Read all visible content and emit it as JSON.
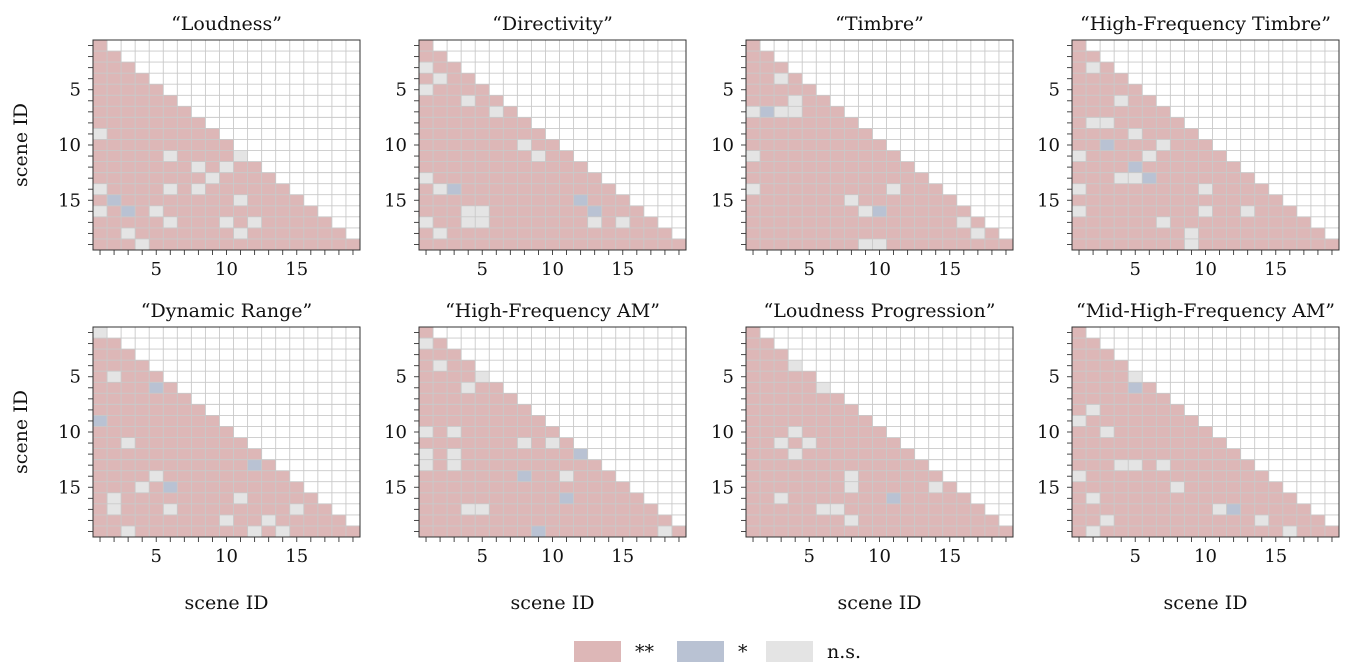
{
  "n_scenes": 19,
  "axis": {
    "xlabel": "scene ID",
    "ylabel": "scene ID",
    "ticks": [
      5,
      10,
      15
    ]
  },
  "legend": [
    {
      "label": "**",
      "color": "#ddb7b7"
    },
    {
      "label": "*",
      "color": "#b9c2d3"
    },
    {
      "label": "n.s.",
      "color": "#e4e4e4"
    }
  ],
  "colors": {
    "grid": "#c9c9c9",
    "frame": "#333333",
    "text": "#111111"
  },
  "chart_data": [
    {
      "type": "heatmap",
      "title": "“Loudness”",
      "sig_one": [
        [
          15,
          2
        ],
        [
          16,
          3
        ]
      ],
      "ns": [
        [
          9,
          1
        ],
        [
          14,
          1
        ],
        [
          11,
          6
        ],
        [
          12,
          8
        ],
        [
          13,
          9
        ],
        [
          14,
          6
        ],
        [
          12,
          10
        ],
        [
          11,
          11
        ],
        [
          14,
          8
        ],
        [
          15,
          11
        ],
        [
          16,
          1
        ],
        [
          16,
          5
        ],
        [
          17,
          6
        ],
        [
          17,
          10
        ],
        [
          17,
          12
        ],
        [
          18,
          3
        ],
        [
          18,
          11
        ],
        [
          19,
          4
        ]
      ]
    },
    {
      "type": "heatmap",
      "title": "“Directivity”",
      "sig_one": [
        [
          14,
          3
        ],
        [
          15,
          12
        ],
        [
          16,
          13
        ]
      ],
      "ns": [
        [
          3,
          1
        ],
        [
          4,
          2
        ],
        [
          5,
          1
        ],
        [
          6,
          4
        ],
        [
          7,
          6
        ],
        [
          10,
          8
        ],
        [
          11,
          9
        ],
        [
          13,
          1
        ],
        [
          14,
          2
        ],
        [
          16,
          4
        ],
        [
          16,
          5
        ],
        [
          17,
          1
        ],
        [
          17,
          4
        ],
        [
          17,
          5
        ],
        [
          17,
          13
        ],
        [
          17,
          15
        ],
        [
          18,
          2
        ]
      ]
    },
    {
      "type": "heatmap",
      "title": "“Timbre”",
      "sig_one": [
        [
          7,
          2
        ],
        [
          16,
          10
        ]
      ],
      "ns": [
        [
          4,
          3
        ],
        [
          6,
          4
        ],
        [
          7,
          3
        ],
        [
          7,
          4
        ],
        [
          7,
          1
        ],
        [
          11,
          1
        ],
        [
          14,
          1
        ],
        [
          14,
          11
        ],
        [
          15,
          8
        ],
        [
          16,
          9
        ],
        [
          17,
          16
        ],
        [
          18,
          17
        ],
        [
          19,
          9
        ],
        [
          19,
          10
        ]
      ]
    },
    {
      "type": "heatmap",
      "title": "“High-Frequency Timbre”",
      "sig_one": [
        [
          10,
          3
        ],
        [
          12,
          5
        ],
        [
          13,
          6
        ]
      ],
      "ns": [
        [
          3,
          2
        ],
        [
          6,
          4
        ],
        [
          8,
          2
        ],
        [
          8,
          3
        ],
        [
          9,
          5
        ],
        [
          10,
          7
        ],
        [
          11,
          1
        ],
        [
          11,
          6
        ],
        [
          13,
          4
        ],
        [
          13,
          5
        ],
        [
          14,
          1
        ],
        [
          14,
          10
        ],
        [
          16,
          1
        ],
        [
          16,
          10
        ],
        [
          16,
          13
        ],
        [
          17,
          7
        ],
        [
          18,
          9
        ],
        [
          19,
          9
        ]
      ]
    },
    {
      "type": "heatmap",
      "title": "“Dynamic Range”",
      "sig_one": [
        [
          6,
          5
        ],
        [
          9,
          1
        ],
        [
          13,
          12
        ],
        [
          15,
          6
        ]
      ],
      "ns": [
        [
          1,
          1
        ],
        [
          5,
          2
        ],
        [
          11,
          3
        ],
        [
          14,
          5
        ],
        [
          15,
          4
        ],
        [
          16,
          2
        ],
        [
          16,
          11
        ],
        [
          17,
          6
        ],
        [
          17,
          2
        ],
        [
          17,
          15
        ],
        [
          18,
          10
        ],
        [
          18,
          13
        ],
        [
          19,
          12
        ],
        [
          19,
          14
        ],
        [
          19,
          3
        ]
      ]
    },
    {
      "type": "heatmap",
      "title": "“High-Frequency AM”",
      "sig_one": [
        [
          12,
          12
        ],
        [
          14,
          8
        ],
        [
          16,
          11
        ],
        [
          19,
          9
        ]
      ],
      "ns": [
        [
          2,
          1
        ],
        [
          4,
          2
        ],
        [
          5,
          5
        ],
        [
          6,
          4
        ],
        [
          10,
          1
        ],
        [
          10,
          3
        ],
        [
          11,
          8
        ],
        [
          11,
          10
        ],
        [
          12,
          1
        ],
        [
          12,
          3
        ],
        [
          13,
          1
        ],
        [
          13,
          3
        ],
        [
          14,
          11
        ],
        [
          17,
          4
        ],
        [
          17,
          5
        ],
        [
          19,
          18
        ]
      ]
    },
    {
      "type": "heatmap",
      "title": "“Loudness Progression”",
      "sig_one": [
        [
          16,
          11
        ]
      ],
      "ns": [
        [
          4,
          4
        ],
        [
          6,
          6
        ],
        [
          10,
          4
        ],
        [
          11,
          3
        ],
        [
          11,
          5
        ],
        [
          12,
          4
        ],
        [
          14,
          8
        ],
        [
          15,
          8
        ],
        [
          15,
          14
        ],
        [
          16,
          3
        ],
        [
          17,
          6
        ],
        [
          17,
          7
        ],
        [
          18,
          8
        ]
      ]
    },
    {
      "type": "heatmap",
      "title": "“Mid-High-Frequency AM”",
      "sig_one": [
        [
          6,
          5
        ],
        [
          17,
          12
        ]
      ],
      "ns": [
        [
          4,
          5
        ],
        [
          5,
          5
        ],
        [
          8,
          2
        ],
        [
          9,
          1
        ],
        [
          10,
          3
        ],
        [
          11,
          12
        ],
        [
          13,
          4
        ],
        [
          13,
          5
        ],
        [
          13,
          7
        ],
        [
          14,
          1
        ],
        [
          15,
          8
        ],
        [
          16,
          2
        ],
        [
          17,
          11
        ],
        [
          18,
          3
        ],
        [
          18,
          14
        ],
        [
          19,
          2
        ],
        [
          19,
          16
        ]
      ]
    }
  ]
}
